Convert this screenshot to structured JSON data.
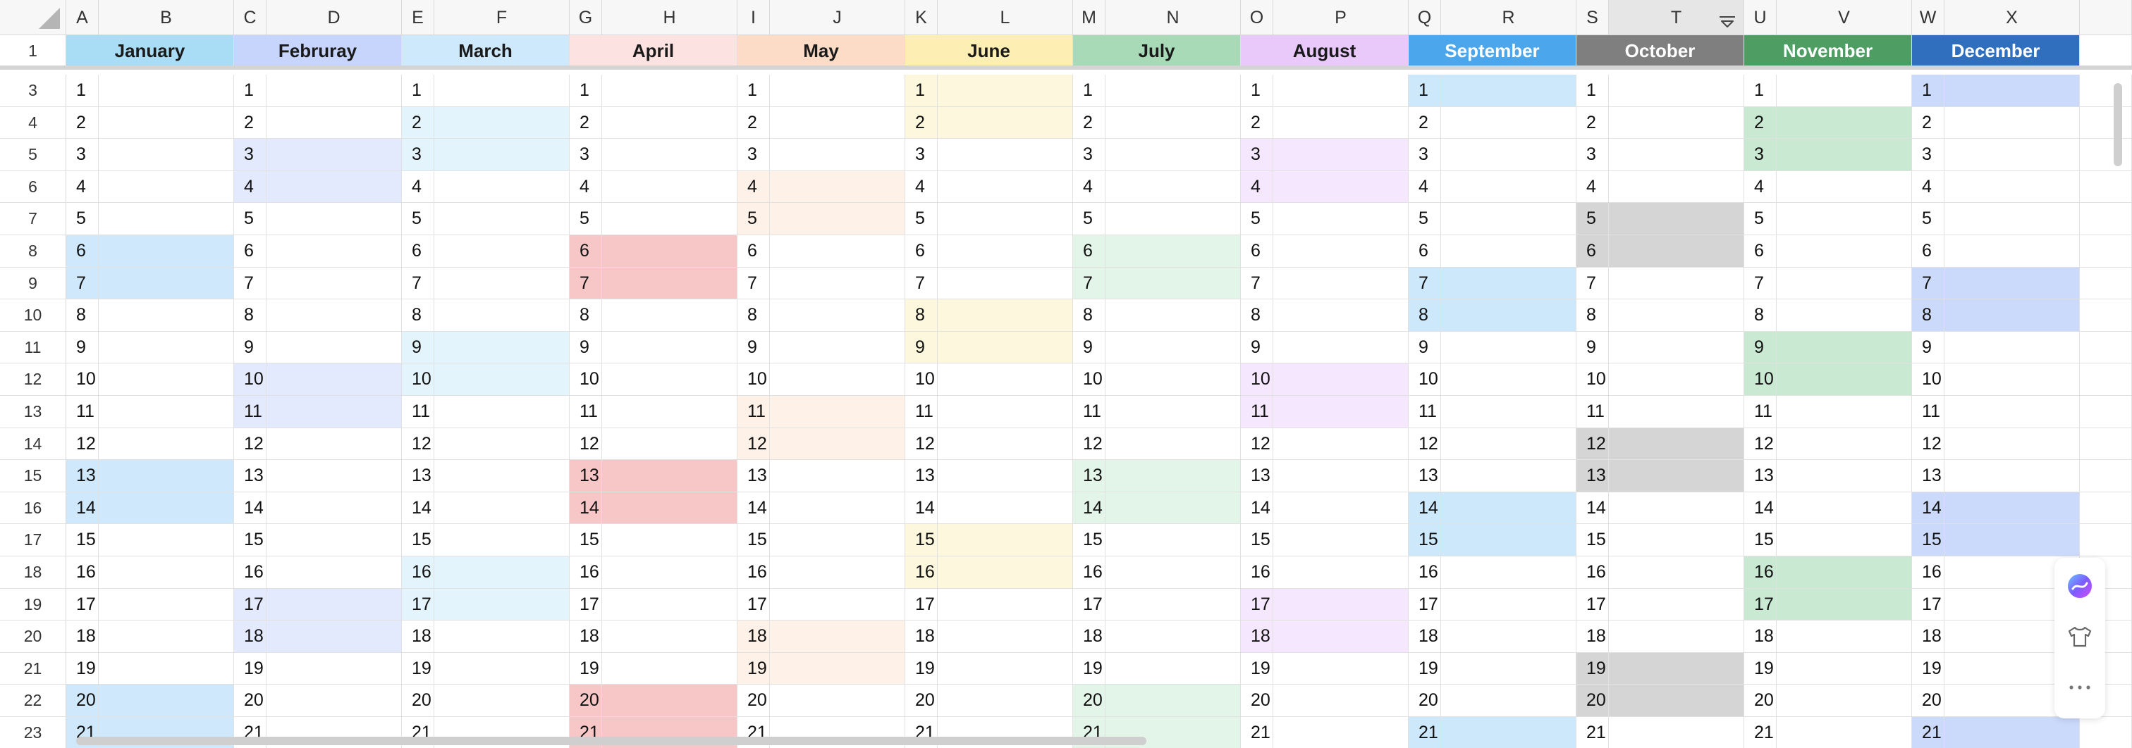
{
  "columns": [
    "A",
    "B",
    "C",
    "D",
    "E",
    "F",
    "G",
    "H",
    "I",
    "J",
    "K",
    "L",
    "M",
    "N",
    "O",
    "P",
    "Q",
    "R",
    "S",
    "T",
    "U",
    "V",
    "W",
    "X"
  ],
  "row_numbers": [
    1,
    3,
    4,
    5,
    6,
    7,
    8,
    9,
    10,
    11,
    12,
    13,
    14,
    15,
    16,
    17,
    18,
    19,
    20,
    21,
    22,
    23
  ],
  "months": [
    {
      "name": "January",
      "color": "#a9dcf5",
      "text_color": "#1a1a1a",
      "light": "#cfe8fb",
      "days": [
        6,
        7,
        13,
        14,
        20,
        21
      ]
    },
    {
      "name": "Februray",
      "color": "#c7d4fb",
      "text_color": "#1a1a1a",
      "light": "#e4eafd",
      "days": [
        3,
        4,
        10,
        11,
        17,
        18
      ]
    },
    {
      "name": "March",
      "color": "#cde9fb",
      "text_color": "#1a1a1a",
      "light": "#e4f4fd",
      "days": [
        2,
        3,
        9,
        10,
        16,
        17
      ]
    },
    {
      "name": "April",
      "color": "#fde2e2",
      "text_color": "#1a1a1a",
      "light": "#f7c6c6",
      "days": [
        6,
        7,
        13,
        14,
        20,
        21
      ]
    },
    {
      "name": "May",
      "color": "#fcdcc6",
      "text_color": "#1a1a1a",
      "light": "#fdf1e8",
      "days": [
        4,
        5,
        11,
        12,
        18,
        19
      ]
    },
    {
      "name": "June",
      "color": "#fdefb3",
      "text_color": "#1a1a1a",
      "light": "#fdf8dd",
      "days": [
        1,
        2,
        8,
        9,
        15,
        16
      ]
    },
    {
      "name": "July",
      "color": "#a8dab7",
      "text_color": "#1a1a1a",
      "light": "#e3f4e8",
      "days": [
        6,
        7,
        13,
        14,
        20,
        21
      ]
    },
    {
      "name": "August",
      "color": "#e9c9fa",
      "text_color": "#1a1a1a",
      "light": "#f5e7fd",
      "days": [
        3,
        4,
        10,
        11,
        17,
        18
      ]
    },
    {
      "name": "September",
      "color": "#4ba6ec",
      "text_color": "#ffffff",
      "light": "#cde7fb",
      "days": [
        1,
        7,
        8,
        14,
        15,
        21
      ]
    },
    {
      "name": "October",
      "color": "#7f7f7f",
      "text_color": "#ffffff",
      "light": "#d5d5d5",
      "days": [
        5,
        6,
        12,
        13,
        19,
        20
      ]
    },
    {
      "name": "November",
      "color": "#4e9d63",
      "text_color": "#ffffff",
      "light": "#c9e9d3",
      "days": [
        2,
        3,
        9,
        10,
        16,
        17
      ]
    },
    {
      "name": "December",
      "color": "#2f6fbd",
      "text_color": "#ffffff",
      "light": "#cbd9fb",
      "days": [
        1,
        7,
        8,
        14,
        15,
        21
      ]
    }
  ],
  "day_values": [
    1,
    2,
    3,
    4,
    5,
    6,
    7,
    8,
    9,
    10,
    11,
    12,
    13,
    14,
    15,
    16,
    17,
    18,
    19,
    20,
    21
  ],
  "selected_column": "T",
  "icons": {
    "corner": "select-all-icon",
    "filter": "filter-icon",
    "assistant": "ai-assistant-icon",
    "theme": "shirt-icon",
    "more": "more-icon"
  }
}
